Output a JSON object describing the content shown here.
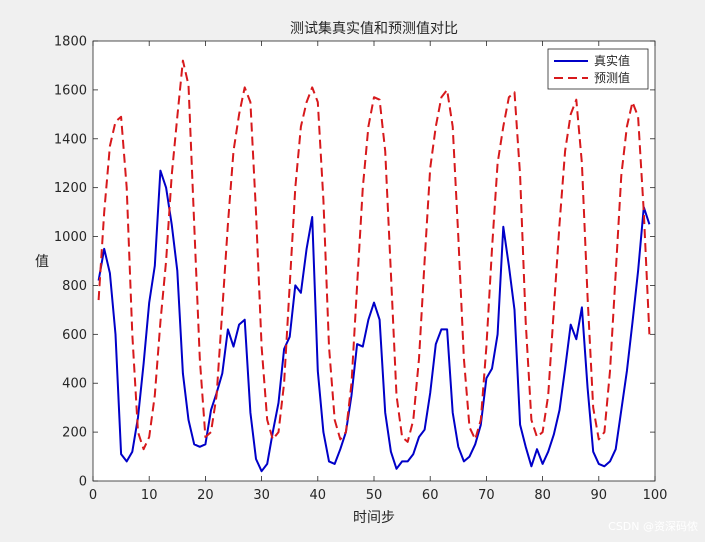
{
  "chart_data": {
    "type": "line",
    "title": "测试集真实值和预测值对比",
    "xlabel": "时间步",
    "ylabel": "值",
    "xlim": [
      0,
      100
    ],
    "ylim": [
      0,
      1800
    ],
    "xticks": [
      0,
      10,
      20,
      30,
      40,
      50,
      60,
      70,
      80,
      90,
      100
    ],
    "yticks": [
      0,
      200,
      400,
      600,
      800,
      1000,
      1200,
      1400,
      1600,
      1800
    ],
    "grid": false,
    "legend_position": "top-right",
    "x": [
      1,
      2,
      3,
      4,
      5,
      6,
      7,
      8,
      9,
      10,
      11,
      12,
      13,
      14,
      15,
      16,
      17,
      18,
      19,
      20,
      21,
      22,
      23,
      24,
      25,
      26,
      27,
      28,
      29,
      30,
      31,
      32,
      33,
      34,
      35,
      36,
      37,
      38,
      39,
      40,
      41,
      42,
      43,
      44,
      45,
      46,
      47,
      48,
      49,
      50,
      51,
      52,
      53,
      54,
      55,
      56,
      57,
      58,
      59,
      60,
      61,
      62,
      63,
      64,
      65,
      66,
      67,
      68,
      69,
      70,
      71,
      72,
      73,
      74,
      75,
      76,
      77,
      78,
      79,
      80,
      81,
      82,
      83,
      84,
      85,
      86,
      87,
      88,
      89,
      90,
      91,
      92,
      93,
      94,
      95,
      96,
      97,
      98,
      99
    ],
    "series": [
      {
        "name": "真实值",
        "color": "#0000c8",
        "style": "solid",
        "values": [
          820,
          950,
          850,
          600,
          110,
          80,
          120,
          260,
          480,
          730,
          880,
          1270,
          1200,
          1050,
          860,
          440,
          250,
          150,
          140,
          150,
          290,
          360,
          440,
          620,
          550,
          640,
          660,
          280,
          90,
          40,
          70,
          200,
          320,
          540,
          590,
          800,
          770,
          950,
          1080,
          450,
          200,
          80,
          70,
          130,
          200,
          350,
          560,
          550,
          660,
          730,
          660,
          280,
          120,
          50,
          80,
          80,
          110,
          180,
          210,
          360,
          560,
          620,
          620,
          280,
          140,
          80,
          100,
          150,
          230,
          420,
          460,
          600,
          1040,
          880,
          700,
          230,
          140,
          60,
          130,
          70,
          120,
          190,
          290,
          460,
          640,
          580,
          710,
          380,
          120,
          70,
          60,
          80,
          130,
          290,
          450,
          650,
          860,
          1120,
          1050
        ]
      },
      {
        "name": "预测值",
        "color": "#d7191c",
        "style": "dashed",
        "values": [
          740,
          1100,
          1370,
          1470,
          1490,
          1200,
          600,
          200,
          130,
          180,
          350,
          650,
          900,
          1250,
          1490,
          1720,
          1620,
          1050,
          500,
          180,
          200,
          350,
          700,
          1050,
          1350,
          1500,
          1610,
          1550,
          1100,
          550,
          250,
          170,
          200,
          400,
          800,
          1200,
          1450,
          1550,
          1610,
          1550,
          1150,
          550,
          250,
          170,
          200,
          400,
          800,
          1200,
          1450,
          1570,
          1560,
          1350,
          850,
          350,
          180,
          160,
          250,
          500,
          900,
          1280,
          1450,
          1570,
          1600,
          1450,
          1000,
          500,
          220,
          170,
          250,
          550,
          950,
          1300,
          1450,
          1570,
          1590,
          1250,
          650,
          250,
          180,
          200,
          350,
          700,
          1050,
          1350,
          1500,
          1560,
          1300,
          750,
          300,
          170,
          200,
          450,
          850,
          1250,
          1450,
          1550,
          1490,
          1100,
          600
        ]
      }
    ]
  },
  "watermark": "CSDN @资深码侬"
}
